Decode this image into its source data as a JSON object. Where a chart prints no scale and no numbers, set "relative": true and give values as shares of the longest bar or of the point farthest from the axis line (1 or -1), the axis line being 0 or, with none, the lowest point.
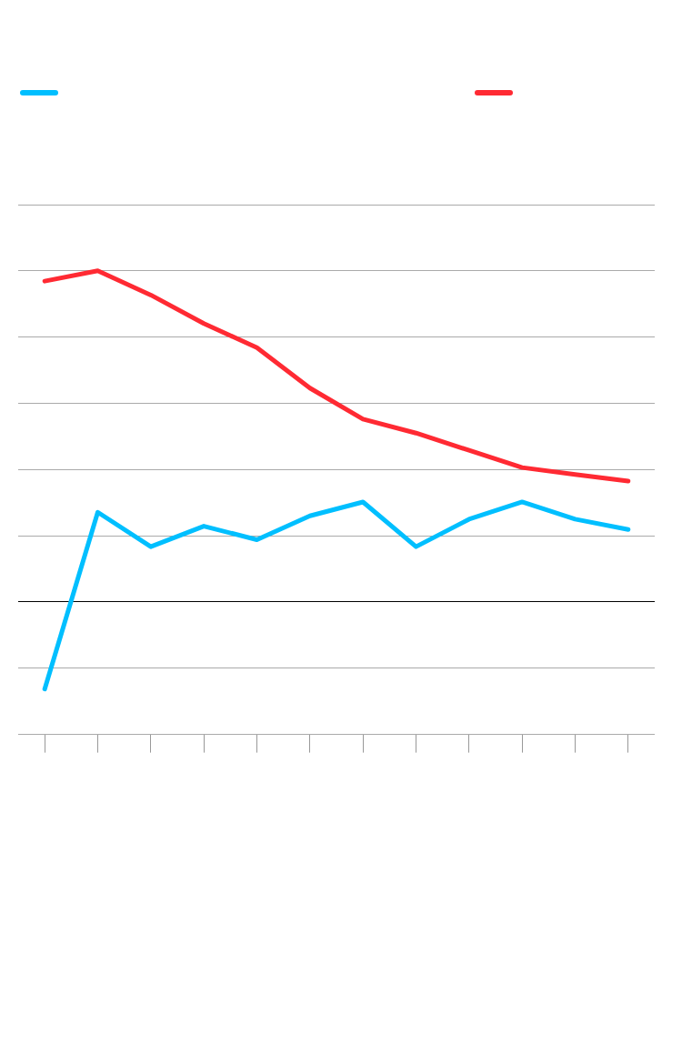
{
  "chart_data": {
    "type": "line",
    "relative": true,
    "categories": [
      null,
      null,
      null,
      null,
      null,
      null,
      null,
      null,
      null,
      null,
      null,
      null
    ],
    "grid": "y",
    "legend": false,
    "marker": "none",
    "line_style": "solid",
    "series": [
      {
        "color": "#00bfff",
        "values": [
          -0.263,
          0.271,
          0.167,
          0.229,
          0.188,
          0.26,
          0.302,
          0.167,
          0.25,
          0.302,
          0.25,
          0.219
        ]
      },
      {
        "color": "#ff2a33",
        "values": [
          0.969,
          1,
          0.927,
          0.841,
          0.768,
          0.646,
          0.552,
          0.51,
          0.458,
          0.406,
          0.385,
          0.365
        ]
      }
    ]
  }
}
